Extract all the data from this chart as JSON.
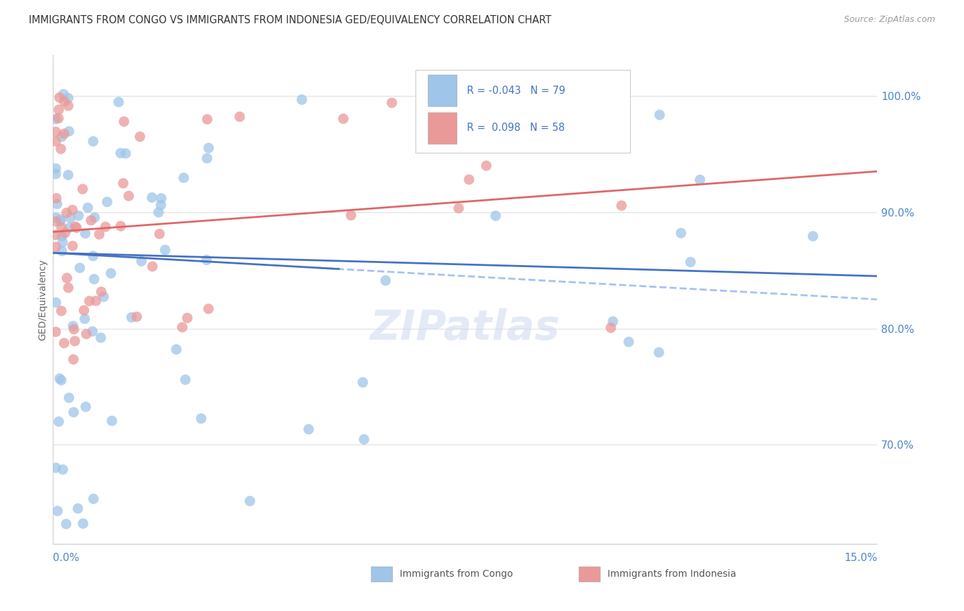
{
  "title": "IMMIGRANTS FROM CONGO VS IMMIGRANTS FROM INDONESIA GED/EQUIVALENCY CORRELATION CHART",
  "source": "Source: ZipAtlas.com",
  "ylabel": "GED/Equivalency",
  "y_ticks": [
    0.7,
    0.8,
    0.9,
    1.0
  ],
  "y_tick_labels": [
    "70.0%",
    "80.0%",
    "90.0%",
    "100.0%"
  ],
  "xmin": 0.0,
  "xmax": 0.15,
  "ymin": 0.615,
  "ymax": 1.035,
  "congo_color": "#9fc5e8",
  "indonesia_color": "#ea9999",
  "congo_label": "Immigrants from Congo",
  "indonesia_label": "Immigrants from Indonesia",
  "congo_R": -0.043,
  "congo_N": 79,
  "indonesia_R": 0.098,
  "indonesia_N": 58,
  "regression_line_color_congo": "#4472c4",
  "regression_line_color_indonesia": "#e06666",
  "regression_dash_color": "#a4c2f4",
  "watermark": "ZIPatlas",
  "background_color": "#ffffff",
  "grid_color": "#e0e0e0",
  "axis_label_color": "#4a86c8",
  "title_fontsize": 11,
  "source_fontsize": 9,
  "legend_text_color_blue": "#4472c4",
  "legend_text_color_pink": "#cc0000"
}
